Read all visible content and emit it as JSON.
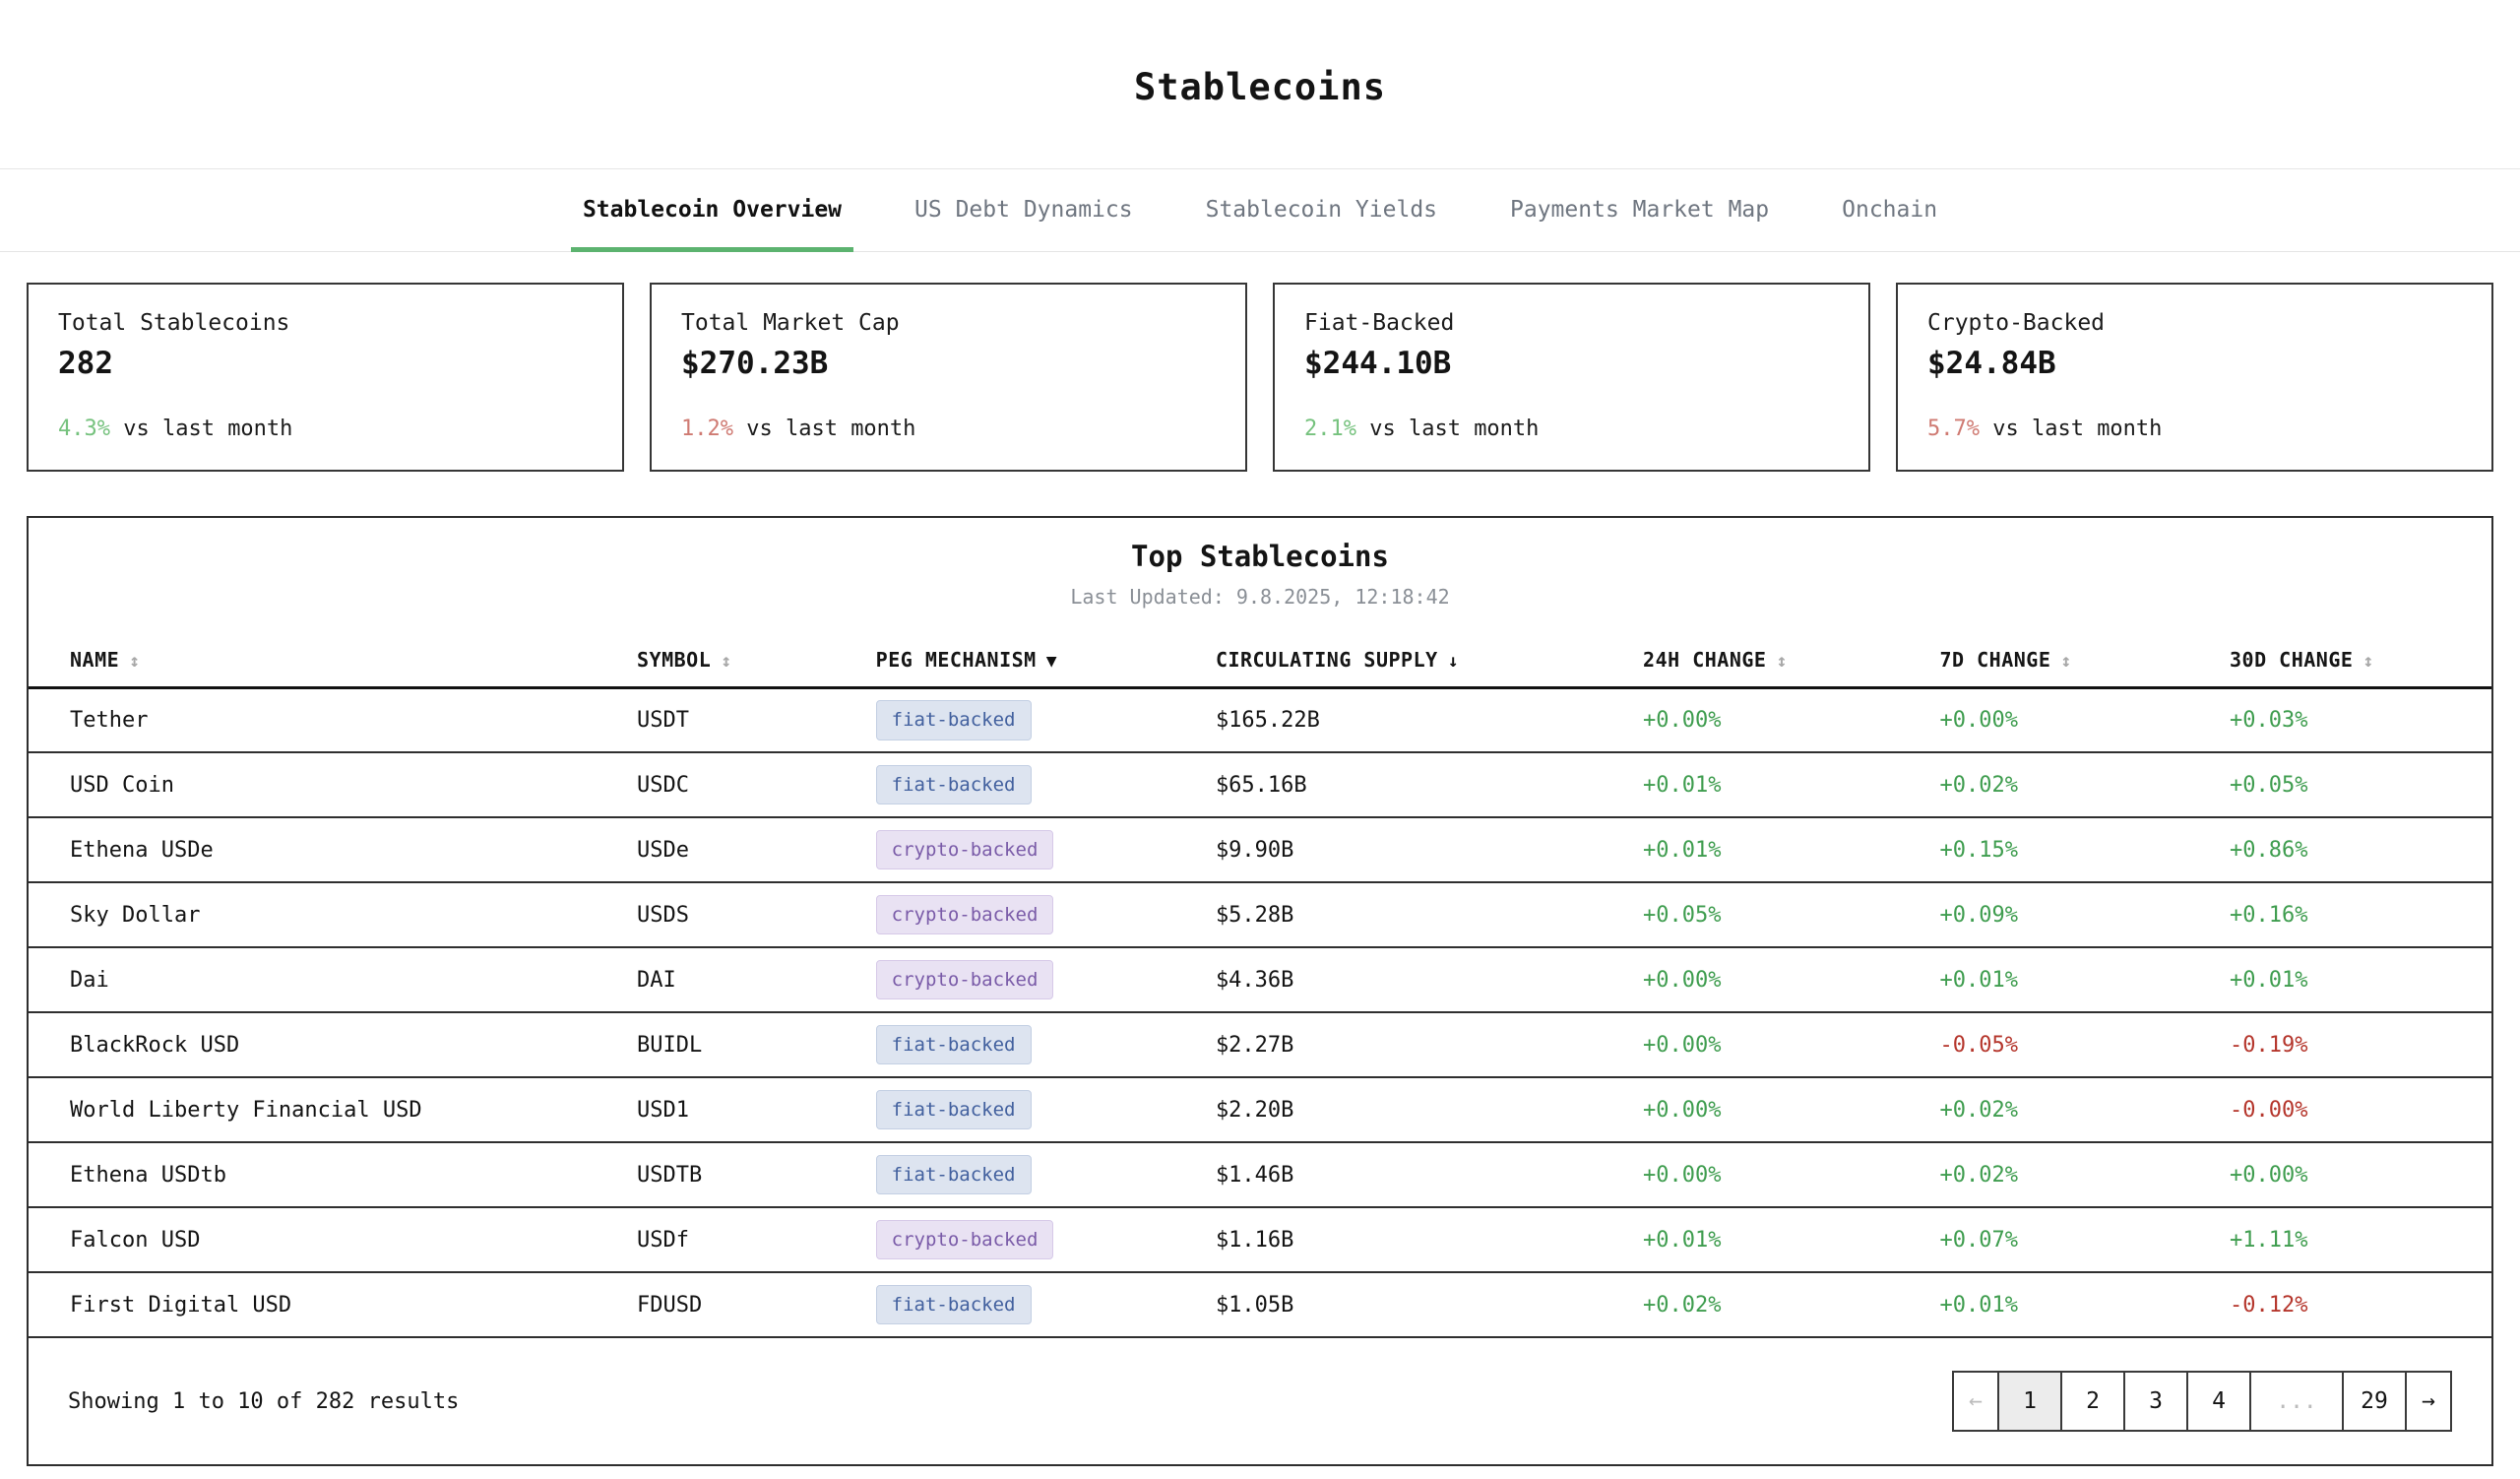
{
  "page_title": "Stablecoins",
  "tabs": [
    {
      "label": "Stablecoin Overview",
      "active": true
    },
    {
      "label": "US Debt Dynamics",
      "active": false
    },
    {
      "label": "Stablecoin Yields",
      "active": false
    },
    {
      "label": "Payments Market Map",
      "active": false
    },
    {
      "label": "Onchain",
      "active": false
    }
  ],
  "stats": [
    {
      "label": "Total Stablecoins",
      "value": "282",
      "change": "4.3%",
      "direction": "up",
      "change_suffix": " vs last month"
    },
    {
      "label": "Total Market Cap",
      "value": "$270.23B",
      "change": "1.2%",
      "direction": "down",
      "change_suffix": " vs last month"
    },
    {
      "label": "Fiat-Backed",
      "value": "$244.10B",
      "change": "2.1%",
      "direction": "up",
      "change_suffix": " vs last month"
    },
    {
      "label": "Crypto-Backed",
      "value": "$24.84B",
      "change": "5.7%",
      "direction": "down",
      "change_suffix": " vs last month"
    }
  ],
  "table": {
    "title": "Top Stablecoins",
    "last_updated": "Last Updated: 9.8.2025, 12:18:42",
    "columns": [
      {
        "label": "NAME",
        "sort_icon": "↕",
        "sort_active": false
      },
      {
        "label": "SYMBOL",
        "sort_icon": "↕",
        "sort_active": false
      },
      {
        "label": "PEG MECHANISM",
        "sort_icon": "▼",
        "sort_active": true
      },
      {
        "label": "CIRCULATING SUPPLY",
        "sort_icon": "↓",
        "sort_active": true
      },
      {
        "label": "24H CHANGE",
        "sort_icon": "↕",
        "sort_active": false
      },
      {
        "label": "7D CHANGE",
        "sort_icon": "↕",
        "sort_active": false
      },
      {
        "label": "30D CHANGE",
        "sort_icon": "↕",
        "sort_active": false
      }
    ],
    "rows": [
      {
        "name": "Tether",
        "symbol": "USDT",
        "peg": "fiat-backed",
        "supply": "$165.22B",
        "change_24h": "+0.00%",
        "change_7d": "+0.00%",
        "change_30d": "+0.03%"
      },
      {
        "name": "USD Coin",
        "symbol": "USDC",
        "peg": "fiat-backed",
        "supply": "$65.16B",
        "change_24h": "+0.01%",
        "change_7d": "+0.02%",
        "change_30d": "+0.05%"
      },
      {
        "name": "Ethena USDe",
        "symbol": "USDe",
        "peg": "crypto-backed",
        "supply": "$9.90B",
        "change_24h": "+0.01%",
        "change_7d": "+0.15%",
        "change_30d": "+0.86%"
      },
      {
        "name": "Sky Dollar",
        "symbol": "USDS",
        "peg": "crypto-backed",
        "supply": "$5.28B",
        "change_24h": "+0.05%",
        "change_7d": "+0.09%",
        "change_30d": "+0.16%"
      },
      {
        "name": "Dai",
        "symbol": "DAI",
        "peg": "crypto-backed",
        "supply": "$4.36B",
        "change_24h": "+0.00%",
        "change_7d": "+0.01%",
        "change_30d": "+0.01%"
      },
      {
        "name": "BlackRock USD",
        "symbol": "BUIDL",
        "peg": "fiat-backed",
        "supply": "$2.27B",
        "change_24h": "+0.00%",
        "change_7d": "-0.05%",
        "change_30d": "-0.19%"
      },
      {
        "name": "World Liberty Financial USD",
        "symbol": "USD1",
        "peg": "fiat-backed",
        "supply": "$2.20B",
        "change_24h": "+0.00%",
        "change_7d": "+0.02%",
        "change_30d": "-0.00%"
      },
      {
        "name": "Ethena USDtb",
        "symbol": "USDTB",
        "peg": "fiat-backed",
        "supply": "$1.46B",
        "change_24h": "+0.00%",
        "change_7d": "+0.02%",
        "change_30d": "+0.00%"
      },
      {
        "name": "Falcon USD",
        "symbol": "USDf",
        "peg": "crypto-backed",
        "supply": "$1.16B",
        "change_24h": "+0.01%",
        "change_7d": "+0.07%",
        "change_30d": "+1.11%"
      },
      {
        "name": "First Digital USD",
        "symbol": "FDUSD",
        "peg": "fiat-backed",
        "supply": "$1.05B",
        "change_24h": "+0.02%",
        "change_7d": "+0.01%",
        "change_30d": "-0.12%"
      }
    ]
  },
  "footer": {
    "showing_text": "Showing 1 to 10 of 282 results",
    "pagination": [
      {
        "label": "←",
        "type": "prev",
        "disabled": true,
        "active": false
      },
      {
        "label": "1",
        "type": "page",
        "disabled": false,
        "active": true
      },
      {
        "label": "2",
        "type": "page",
        "disabled": false,
        "active": false
      },
      {
        "label": "3",
        "type": "page",
        "disabled": false,
        "active": false
      },
      {
        "label": "4",
        "type": "page",
        "disabled": false,
        "active": false
      },
      {
        "label": "...",
        "type": "ellipsis",
        "disabled": true,
        "active": false
      },
      {
        "label": "29",
        "type": "page",
        "disabled": false,
        "active": false
      },
      {
        "label": "→",
        "type": "next",
        "disabled": false,
        "active": false
      }
    ]
  },
  "colors": {
    "accent_green": "#5cb36f",
    "table_positive": "#3f9d4f",
    "table_negative": "#b5362c",
    "stat_positive": "#76c27e",
    "stat_negative": "#cf7a72",
    "badge_fiat_bg": "#dde4f0",
    "badge_fiat_border": "#c3cfe3",
    "badge_fiat_text": "#42609e",
    "badge_crypto_bg": "#e9e2f3",
    "badge_crypto_border": "#d6c9e8",
    "badge_crypto_text": "#7a5ba8"
  }
}
